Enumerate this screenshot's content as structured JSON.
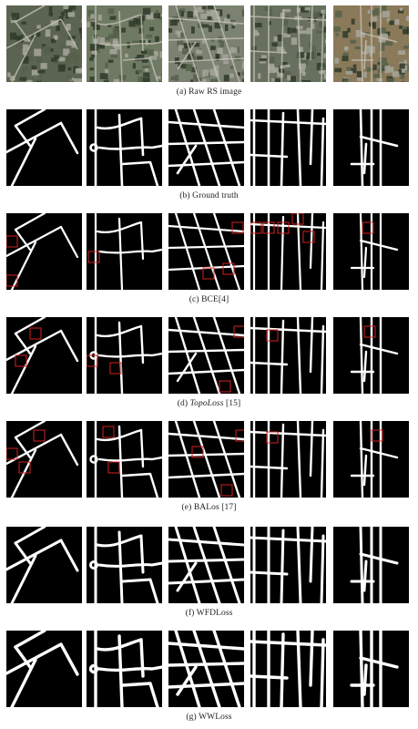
{
  "figure": {
    "rows": [
      {
        "id": "raw",
        "label": "(a)",
        "name": "Raw RS image",
        "italic": false,
        "ref": "",
        "kind": "raw"
      },
      {
        "id": "gt",
        "label": "(b)",
        "name": "Ground truth",
        "italic": false,
        "ref": "",
        "kind": "mask"
      },
      {
        "id": "bce",
        "label": "(c)",
        "name": "BCE",
        "italic": false,
        "ref": "[4]",
        "kind": "mask"
      },
      {
        "id": "topo",
        "label": "(d)",
        "name": "TopoLoss",
        "italic": true,
        "ref": "[15]",
        "kind": "mask"
      },
      {
        "id": "balos",
        "label": "(e)",
        "name": "BALos",
        "italic": false,
        "ref": "[17]",
        "kind": "mask"
      },
      {
        "id": "wfd",
        "label": "(f)",
        "name": "WFDLoss",
        "italic": false,
        "ref": "",
        "kind": "mask"
      },
      {
        "id": "ww",
        "label": "(g)",
        "name": "WWLoss",
        "italic": false,
        "ref": "",
        "kind": "mask"
      }
    ],
    "colors": {
      "background": "#ffffff",
      "mask_background": "#000000",
      "road": "#ffffff",
      "highlight_box": "#d42020",
      "raw_tones": [
        "#5b6450",
        "#6f7a63",
        "#7b8272",
        "#67705e",
        "#8a7a5a"
      ]
    }
  }
}
